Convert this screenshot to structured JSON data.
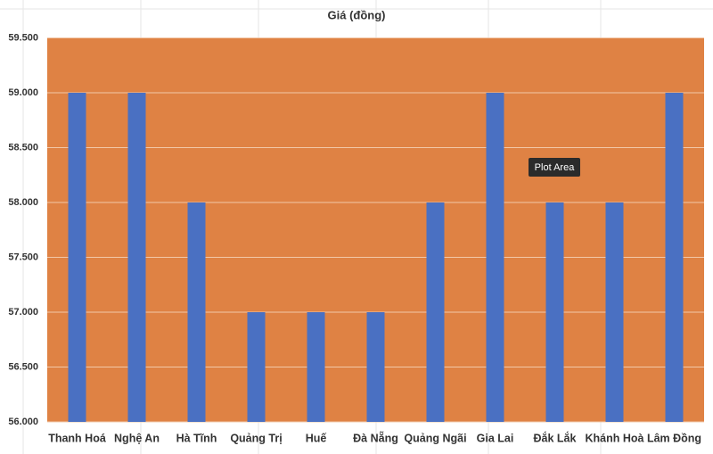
{
  "chart_data": {
    "type": "bar",
    "title": "Giá (đồng)",
    "categories": [
      "Thanh Hoá",
      "Nghệ An",
      "Hà Tĩnh",
      "Quảng Trị",
      "Huế",
      "Đà Nẵng",
      "Quảng Ngãi",
      "Gia Lai",
      "Đắk Lắk",
      "Khánh Hoà",
      "Lâm Đồng"
    ],
    "values": [
      59000,
      59000,
      58000,
      57000,
      57000,
      57000,
      58000,
      59000,
      58000,
      58000,
      59000
    ],
    "color": "#4a70c2",
    "plot_background": "#df8244",
    "ylim": [
      56000,
      59500
    ],
    "yticks": [
      {
        "value": 56000,
        "label": "56.000"
      },
      {
        "value": 56500,
        "label": "56.500"
      },
      {
        "value": 57000,
        "label": "57.000"
      },
      {
        "value": 57500,
        "label": "57.500"
      },
      {
        "value": 58000,
        "label": "58.000"
      },
      {
        "value": 58500,
        "label": "58.500"
      },
      {
        "value": 59000,
        "label": "59.000"
      },
      {
        "value": 59500,
        "label": "59.500"
      }
    ],
    "grid": true,
    "tooltip": "Plot Area"
  }
}
